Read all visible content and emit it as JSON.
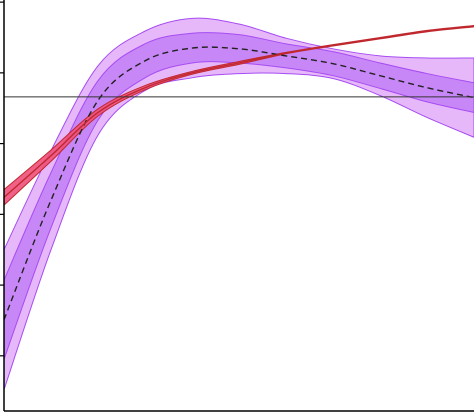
{
  "chart_data": {
    "type": "line",
    "x": [
      0,
      0.1,
      0.2,
      0.3,
      0.4,
      0.5,
      0.6,
      0.7,
      0.8,
      0.9,
      1
    ],
    "xlim": [
      0,
      1
    ],
    "ylim": [
      -0.78,
      5.03
    ],
    "yticks": [
      0,
      1,
      2,
      3,
      4,
      5
    ],
    "hlines": [
      3.66
    ],
    "series": [
      {
        "color": "#a64cf2",
        "dashed": true,
        "values": [
          0.51,
          2.2,
          3.61,
          4.17,
          4.35,
          4.34,
          4.24,
          4.13,
          3.96,
          3.79,
          3.65
        ],
        "bands": [
          {
            "color": "#e4b0f8",
            "lower": [
              -0.48,
              1.5,
              3.12,
              3.75,
              3.93,
              3.99,
              3.99,
              3.92,
              3.68,
              3.37,
              3.09
            ],
            "upper": [
              1.5,
              2.9,
              4.1,
              4.59,
              4.77,
              4.69,
              4.49,
              4.34,
              4.24,
              4.21,
              4.21
            ]
          },
          {
            "color": "#c382f5",
            "lower": [
              -0.05,
              1.81,
              3.33,
              3.93,
              4.14,
              4.14,
              4.07,
              3.96,
              3.78,
              3.59,
              3.44
            ],
            "upper": [
              1.07,
              2.59,
              3.89,
              4.41,
              4.56,
              4.54,
              4.41,
              4.3,
              4.14,
              3.99,
              3.86
            ]
          }
        ]
      },
      {
        "color": "#c0282f",
        "dashed": false,
        "values": [
          2.24,
          2.83,
          3.44,
          3.79,
          4.0,
          4.14,
          4.28,
          4.39,
          4.49,
          4.59,
          4.66
        ],
        "bands": [
          {
            "color": "#f0507a",
            "lower": [
              2.13,
              2.75,
              3.39,
              3.76,
              3.98,
              4.12,
              4.27,
              4.38,
              4.48,
              4.58,
              4.65
            ],
            "upper": [
              2.35,
              2.91,
              3.49,
              3.82,
              4.02,
              4.16,
              4.29,
              4.4,
              4.5,
              4.6,
              4.67
            ]
          }
        ]
      }
    ]
  }
}
